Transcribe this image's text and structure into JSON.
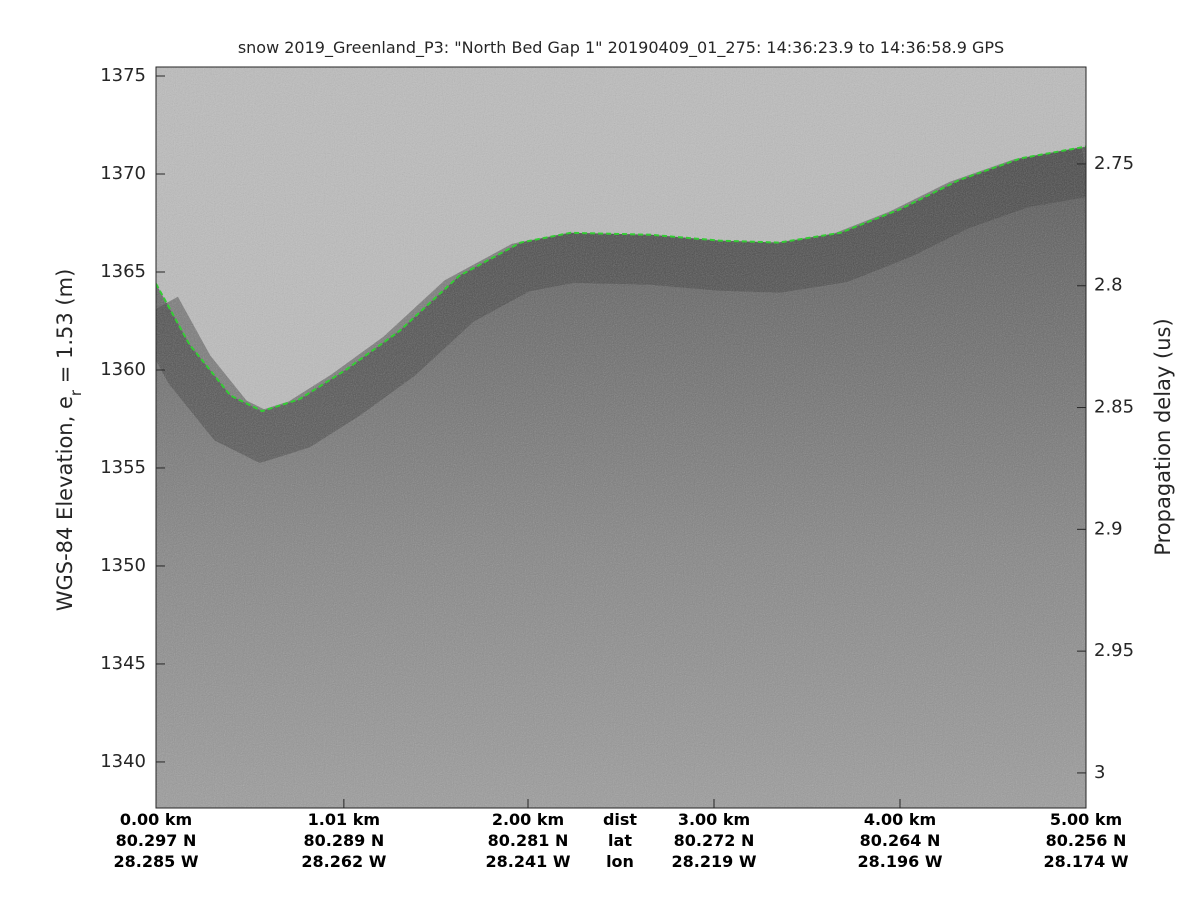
{
  "chart_data": {
    "type": "echogram",
    "title": "snow 2019_Greenland_P3: \"North Bed Gap 1\"  20190409_01_275: 14:36:23.9 to 14:36:58.9 GPS",
    "ylabel_parts": [
      "WGS-84 Elevation, e",
      "r",
      " = 1.53 (m)"
    ],
    "y2label": "Propagation delay (us)",
    "xlim": [
      0,
      5
    ],
    "xticks": [
      {
        "value": 0,
        "label": "0.00 km"
      },
      {
        "value": 1.01,
        "label": "1.01 km"
      },
      {
        "value": 2,
        "label": "2.00 km"
      },
      {
        "value": 3,
        "label": "3.00 km"
      },
      {
        "value": 4,
        "label": "4.00 km"
      },
      {
        "value": 5,
        "label": "5.00 km"
      }
    ],
    "xtick_lat": [
      "80.297 N",
      "80.289 N",
      "80.281 N",
      "80.272 N",
      "80.264 N",
      "80.256 N"
    ],
    "xtick_lon": [
      "28.285 W",
      "28.262 W",
      "28.241 W",
      "28.219 W",
      "28.196 W",
      "28.174 W"
    ],
    "xtick_row_names": [
      "dist",
      "lat",
      "lon"
    ],
    "ylim": [
      1337.65,
      1375.46
    ],
    "yticks": [
      1340,
      1345,
      1350,
      1355,
      1360,
      1365,
      1370,
      1375
    ],
    "y2lim": [
      3.0144,
      2.7102
    ],
    "y2ticks": [
      2.75,
      2.8,
      2.85,
      2.9,
      2.95,
      3
    ],
    "series": [
      {
        "name": "surface",
        "color": "#33cc33",
        "x": [
          0,
          0.18,
          0.4,
          0.57,
          0.77,
          1.02,
          1.31,
          1.63,
          1.96,
          2.23,
          2.66,
          3.03,
          3.35,
          3.68,
          4.0,
          4.32,
          4.65,
          5.0
        ],
        "values": [
          1364.4,
          1361.3,
          1358.7,
          1357.9,
          1358.5,
          1360.0,
          1362.0,
          1364.8,
          1366.5,
          1367.0,
          1366.9,
          1366.6,
          1366.5,
          1367.0,
          1368.2,
          1369.7,
          1370.8,
          1371.4
        ]
      }
    ]
  }
}
